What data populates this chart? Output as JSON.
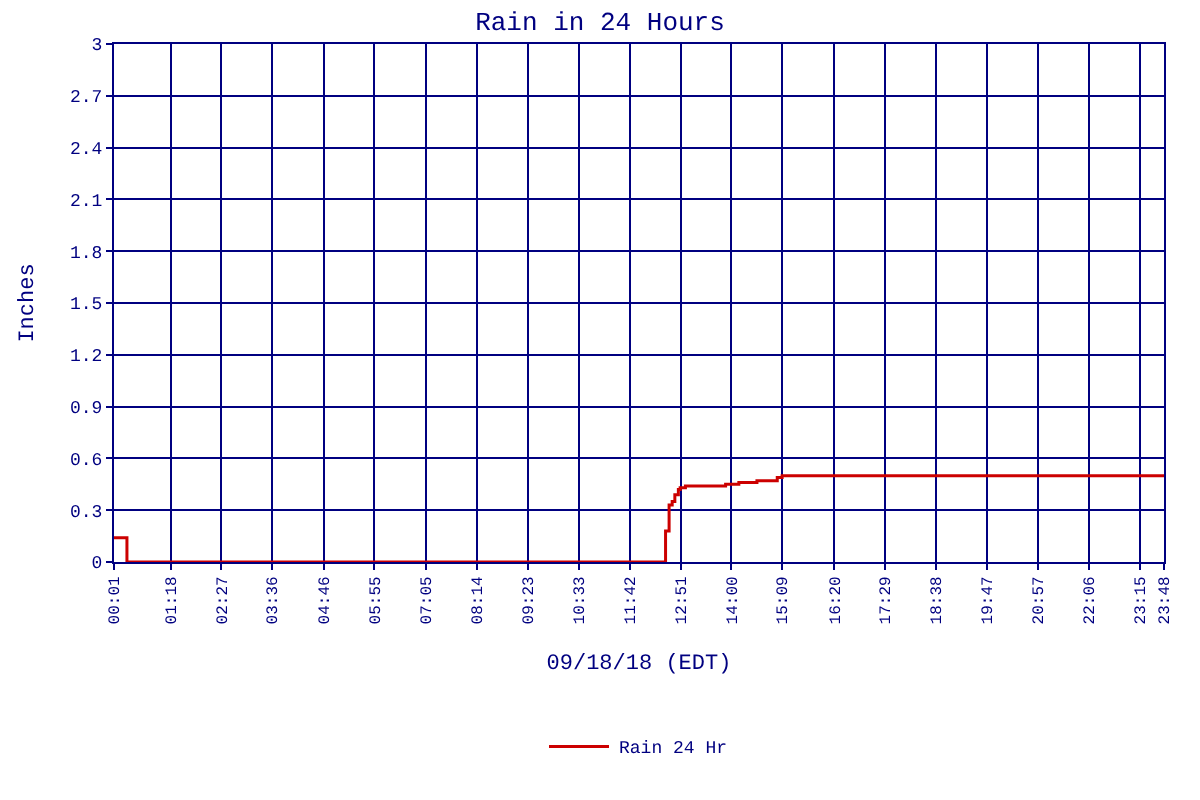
{
  "chart_data": {
    "type": "step",
    "title": "Rain in 24 Hours",
    "xlabel": "09/18/18 (EDT)",
    "ylabel": "Inches",
    "x": [
      0.0167,
      0.31,
      12.47,
      12.51,
      12.59,
      12.66,
      12.72,
      12.8,
      12.84,
      12.96,
      13.87,
      14.17,
      14.58,
      15.04,
      15.15,
      23.8
    ],
    "series": [
      {
        "name": "Rain 24 Hr",
        "color": "#cc0000",
        "values": [
          0.14,
          0,
          0,
          0.18,
          0.33,
          0.35,
          0.39,
          0.42,
          0.43,
          0.44,
          0.45,
          0.46,
          0.47,
          0.49,
          0.5,
          0.5
        ]
      }
    ],
    "xlim": [
      0.0167,
      23.8
    ],
    "xticks": [
      {
        "value": 0.0167,
        "label": "00:01"
      },
      {
        "value": 1.3,
        "label": "01:18"
      },
      {
        "value": 2.45,
        "label": "02:27"
      },
      {
        "value": 3.6,
        "label": "03:36"
      },
      {
        "value": 4.7667,
        "label": "04:46"
      },
      {
        "value": 5.9167,
        "label": "05:55"
      },
      {
        "value": 7.0833,
        "label": "07:05"
      },
      {
        "value": 8.2333,
        "label": "08:14"
      },
      {
        "value": 9.3833,
        "label": "09:23"
      },
      {
        "value": 10.55,
        "label": "10:33"
      },
      {
        "value": 11.7,
        "label": "11:42"
      },
      {
        "value": 12.85,
        "label": "12:51"
      },
      {
        "value": 14,
        "label": "14:00"
      },
      {
        "value": 15.15,
        "label": "15:09"
      },
      {
        "value": 16.3333,
        "label": "16:20"
      },
      {
        "value": 17.4833,
        "label": "17:29"
      },
      {
        "value": 18.6333,
        "label": "18:38"
      },
      {
        "value": 19.7833,
        "label": "19:47"
      },
      {
        "value": 20.95,
        "label": "20:57"
      },
      {
        "value": 22.1,
        "label": "22:06"
      },
      {
        "value": 23.25,
        "label": "23:15"
      },
      {
        "value": 23.8,
        "label": "23:48"
      }
    ],
    "ylim": [
      0,
      3
    ],
    "yticks": [
      0,
      0.3,
      0.6,
      0.9,
      1.2,
      1.5,
      1.8,
      2.1,
      2.4,
      2.7,
      3
    ],
    "grid": true,
    "legend": "bottom",
    "marker": "none",
    "line_style": "solid"
  }
}
